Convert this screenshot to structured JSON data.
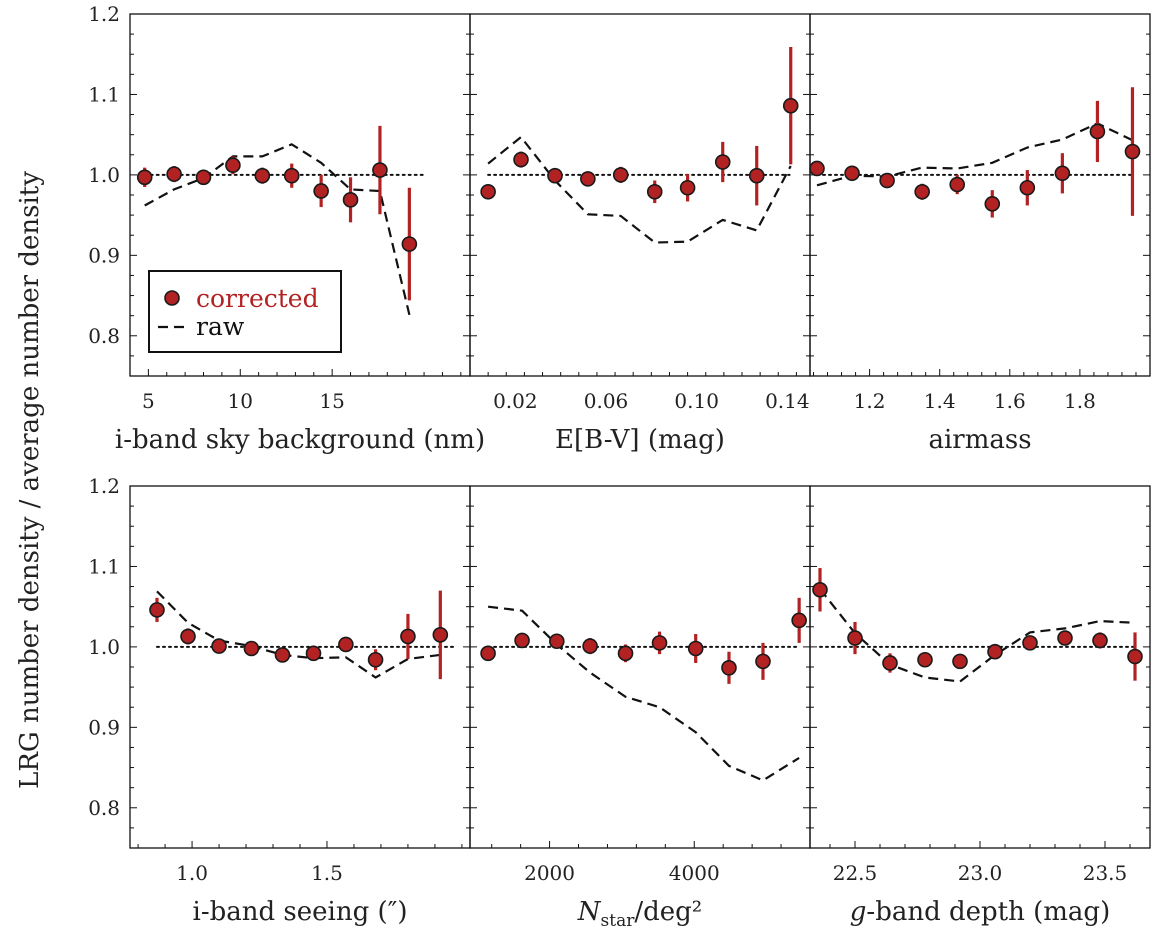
{
  "figure": {
    "ylabel": "LRG number density / average number density",
    "legend": {
      "placement": "lower-left of first panel",
      "corrected": "corrected",
      "raw": "raw"
    },
    "colors": {
      "corrected": "#b22222",
      "errorbar": "#b22222",
      "raw": "#111111",
      "reference": "#111111"
    }
  },
  "chart_data": [
    {
      "type": "scatter",
      "panel": "i-band sky background",
      "xlabel": "i-band sky background (nm)",
      "xlim": [
        4,
        22.5
      ],
      "ylim": [
        0.75,
        1.2
      ],
      "xticks": [
        5,
        10,
        15
      ],
      "xtick_labels": [
        "5",
        "10",
        "15"
      ],
      "yticks": [
        0.8,
        0.9,
        1.0,
        1.1,
        1.2
      ],
      "ytick_labels": [
        "0.8",
        "0.9",
        "1.0",
        "1.1",
        "1.2"
      ],
      "reference_line": {
        "y": 1.0,
        "x_range": [
          4.8,
          20
        ],
        "style": "dotted"
      },
      "series": [
        {
          "label": "corrected",
          "x": [
            4.8,
            6.4,
            8.0,
            9.6,
            11.2,
            12.8,
            14.4,
            16.0,
            17.6,
            19.2
          ],
          "y": [
            0.997,
            1.001,
            0.997,
            1.012,
            0.999,
            0.999,
            0.98,
            0.969,
            1.006,
            0.914
          ],
          "yerr": [
            0.012,
            0.01,
            0.008,
            0.011,
            0.01,
            0.015,
            0.02,
            0.028,
            0.055,
            0.07
          ]
        },
        {
          "label": "raw",
          "style": "dashed",
          "x": [
            4.8,
            6.4,
            8.0,
            9.6,
            11.2,
            12.8,
            14.4,
            16.0,
            17.6,
            19.2
          ],
          "y": [
            0.962,
            0.982,
            0.996,
            1.023,
            1.023,
            1.038,
            1.015,
            0.982,
            0.98,
            0.826
          ]
        }
      ]
    },
    {
      "type": "scatter",
      "panel": "E[B-V]",
      "xlabel": "E[B-V] (mag)",
      "xlim": [
        0.0,
        0.15
      ],
      "ylim": [
        0.75,
        1.2
      ],
      "xticks": [
        0.02,
        0.06,
        0.1,
        0.14
      ],
      "xtick_labels": [
        "0.02",
        "0.06",
        "0.10",
        "0.14"
      ],
      "yticks": [
        0.8,
        0.9,
        1.0,
        1.1,
        1.2
      ],
      "reference_line": {
        "y": 1.0,
        "x_range": [
          0.008,
          0.141
        ],
        "style": "dotted"
      },
      "series": [
        {
          "label": "corrected",
          "x": [
            0.008,
            0.0225,
            0.0375,
            0.052,
            0.0665,
            0.0815,
            0.096,
            0.1115,
            0.1265,
            0.1415
          ],
          "y": [
            0.979,
            1.019,
            0.999,
            0.995,
            1.0,
            0.979,
            0.984,
            1.016,
            0.999,
            1.086
          ],
          "yerr": [
            0.008,
            0.01,
            0.009,
            0.008,
            0.01,
            0.014,
            0.017,
            0.025,
            0.037,
            0.073
          ]
        },
        {
          "label": "raw",
          "style": "dashed",
          "x": [
            0.008,
            0.0225,
            0.0375,
            0.052,
            0.0665,
            0.0815,
            0.096,
            0.1115,
            0.1265,
            0.1415
          ],
          "y": [
            1.014,
            1.047,
            0.993,
            0.951,
            0.949,
            0.916,
            0.917,
            0.944,
            0.931,
            1.011
          ]
        }
      ]
    },
    {
      "type": "scatter",
      "panel": "airmass",
      "xlabel": "airmass",
      "xlim": [
        1.03,
        2.0
      ],
      "ylim": [
        0.75,
        1.2
      ],
      "xticks": [
        1.2,
        1.4,
        1.6,
        1.8
      ],
      "xtick_labels": [
        "1.2",
        "1.4",
        "1.6",
        "1.8"
      ],
      "yticks": [
        0.8,
        0.9,
        1.0,
        1.1,
        1.2
      ],
      "reference_line": {
        "y": 1.0,
        "x_range": [
          1.05,
          1.95
        ],
        "style": "dotted"
      },
      "series": [
        {
          "label": "corrected",
          "x": [
            1.05,
            1.15,
            1.25,
            1.35,
            1.45,
            1.55,
            1.65,
            1.75,
            1.85,
            1.95
          ],
          "y": [
            1.008,
            1.002,
            0.993,
            0.979,
            0.988,
            0.964,
            0.984,
            1.002,
            1.054,
            1.029
          ],
          "yerr": [
            0.006,
            0.006,
            0.007,
            0.01,
            0.012,
            0.017,
            0.022,
            0.025,
            0.038,
            0.08
          ]
        },
        {
          "label": "raw",
          "style": "dashed",
          "x": [
            1.05,
            1.15,
            1.25,
            1.35,
            1.45,
            1.55,
            1.65,
            1.75,
            1.85,
            1.95
          ],
          "y": [
            0.987,
            0.999,
            0.998,
            1.009,
            1.008,
            1.015,
            1.034,
            1.044,
            1.064,
            1.043
          ]
        }
      ]
    },
    {
      "type": "scatter",
      "panel": "i-band seeing",
      "xlabel": "i-band seeing (″)",
      "xlim": [
        0.77,
        2.03
      ],
      "ylim": [
        0.75,
        1.2
      ],
      "xticks": [
        1.0,
        1.5
      ],
      "xtick_labels": [
        "1.0",
        "1.5"
      ],
      "yticks": [
        0.8,
        0.9,
        1.0,
        1.1,
        1.2
      ],
      "reference_line": {
        "y": 1.0,
        "x_range": [
          0.87,
          1.97
        ],
        "style": "dotted"
      },
      "series": [
        {
          "label": "corrected",
          "x": [
            0.87,
            0.985,
            1.1,
            1.22,
            1.335,
            1.45,
            1.57,
            1.68,
            1.8,
            1.92
          ],
          "y": [
            1.046,
            1.013,
            1.001,
            0.998,
            0.99,
            0.992,
            1.003,
            0.984,
            1.013,
            1.015
          ],
          "yerr": [
            0.015,
            0.01,
            0.007,
            0.006,
            0.007,
            0.007,
            0.008,
            0.013,
            0.028,
            0.055
          ]
        },
        {
          "label": "raw",
          "style": "dashed",
          "x": [
            0.87,
            0.985,
            1.1,
            1.22,
            1.335,
            1.45,
            1.57,
            1.68,
            1.8,
            1.92
          ],
          "y": [
            1.069,
            1.03,
            1.008,
            1.001,
            0.99,
            0.986,
            0.987,
            0.962,
            0.985,
            0.99
          ]
        }
      ]
    },
    {
      "type": "scatter",
      "panel": "N_star",
      "xlabel": "N_star/deg²",
      "xlim": [
        900,
        5600
      ],
      "ylim": [
        0.75,
        1.2
      ],
      "xticks": [
        2000,
        4000
      ],
      "xtick_labels": [
        "2000",
        "4000"
      ],
      "yticks": [
        0.8,
        0.9,
        1.0,
        1.1,
        1.2
      ],
      "reference_line": {
        "y": 1.0,
        "x_range": [
          1150,
          5450
        ],
        "style": "dotted"
      },
      "series": [
        {
          "label": "corrected",
          "x": [
            1150,
            1620,
            2100,
            2560,
            3050,
            3520,
            4020,
            4480,
            4950,
            5450
          ],
          "y": [
            0.992,
            1.008,
            1.007,
            1.001,
            0.992,
            1.005,
            0.998,
            0.974,
            0.982,
            1.033
          ],
          "yerr": [
            0.007,
            0.009,
            0.009,
            0.01,
            0.011,
            0.014,
            0.018,
            0.02,
            0.023,
            0.028
          ]
        },
        {
          "label": "raw",
          "style": "dashed",
          "x": [
            1150,
            1620,
            2100,
            2560,
            3050,
            3520,
            4020,
            4480,
            4950,
            5450
          ],
          "y": [
            1.05,
            1.045,
            1.003,
            0.968,
            0.938,
            0.925,
            0.894,
            0.852,
            0.834,
            0.862
          ]
        }
      ]
    },
    {
      "type": "scatter",
      "panel": "g-band depth",
      "xlabel": "g-band depth (mag)",
      "xlim": [
        22.32,
        23.68
      ],
      "ylim": [
        0.75,
        1.2
      ],
      "xticks": [
        22.5,
        23.0,
        23.5
      ],
      "xtick_labels": [
        "22.5",
        "23.0",
        "23.5"
      ],
      "yticks": [
        0.8,
        0.9,
        1.0,
        1.1,
        1.2
      ],
      "reference_line": {
        "y": 1.0,
        "x_range": [
          22.36,
          23.62
        ],
        "style": "dotted"
      },
      "series": [
        {
          "label": "corrected",
          "x": [
            22.36,
            22.5,
            22.64,
            22.78,
            22.92,
            23.06,
            23.2,
            23.34,
            23.48,
            23.62
          ],
          "y": [
            1.071,
            1.011,
            0.98,
            0.984,
            0.982,
            0.994,
            1.005,
            1.011,
            1.008,
            0.988
          ],
          "yerr": [
            0.027,
            0.02,
            0.012,
            0.008,
            0.007,
            0.007,
            0.007,
            0.008,
            0.01,
            0.03
          ]
        },
        {
          "label": "raw",
          "style": "dashed",
          "x": [
            22.36,
            22.5,
            22.64,
            22.78,
            22.92,
            23.06,
            23.2,
            23.34,
            23.48,
            23.62
          ],
          "y": [
            1.072,
            1.017,
            0.978,
            0.962,
            0.957,
            0.99,
            1.018,
            1.023,
            1.032,
            1.03
          ]
        }
      ]
    }
  ]
}
